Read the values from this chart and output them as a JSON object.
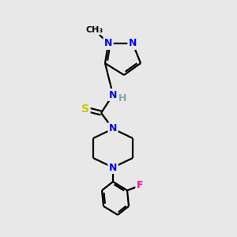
{
  "background_color": "#e8e8e8",
  "bond_color": "#000000",
  "atom_colors": {
    "N": "#0000ff",
    "S": "#c8c800",
    "F": "#ff1493",
    "H": "#7faaaa",
    "C": "#000000"
  },
  "figsize": [
    3.0,
    3.0
  ],
  "dpi": 100
}
